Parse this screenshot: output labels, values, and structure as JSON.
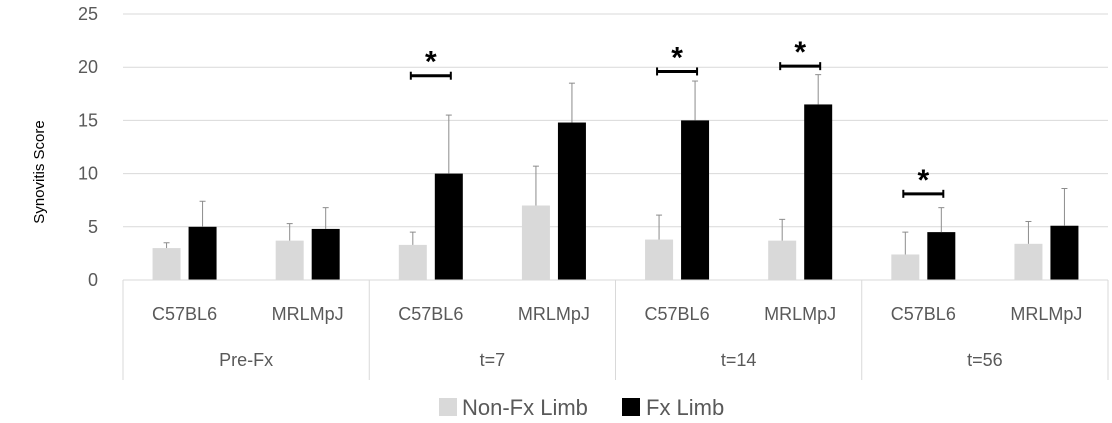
{
  "chart_data": {
    "type": "bar",
    "title": "",
    "ylabel": "Synovitis Score",
    "xlabel": "",
    "ylim": [
      0,
      25
    ],
    "yticks": [
      0,
      5,
      10,
      15,
      20,
      25
    ],
    "grid": true,
    "legend_position": "bottom",
    "groups": [
      {
        "label": "Pre-Fx",
        "strains": [
          "C57BL6",
          "MRLMpJ"
        ]
      },
      {
        "label": "t=7",
        "strains": [
          "C57BL6",
          "MRLMpJ"
        ]
      },
      {
        "label": "t=14",
        "strains": [
          "C57BL6",
          "MRLMpJ"
        ]
      },
      {
        "label": "t=56",
        "strains": [
          "C57BL6",
          "MRLMpJ"
        ]
      }
    ],
    "categories": [
      "C57BL6",
      "MRLMpJ",
      "C57BL6",
      "MRLMpJ",
      "C57BL6",
      "MRLMpJ",
      "C57BL6",
      "MRLMpJ"
    ],
    "series": [
      {
        "name": "Non-Fx Limb",
        "color": "#d9d9d9",
        "values": [
          3.0,
          3.7,
          3.3,
          7.0,
          3.8,
          3.7,
          2.4,
          3.4
        ],
        "error": [
          0.5,
          1.6,
          1.2,
          3.7,
          2.3,
          2.0,
          2.1,
          2.1
        ]
      },
      {
        "name": "Fx Limb",
        "color": "#000000",
        "values": [
          5.0,
          4.8,
          10.0,
          14.8,
          15.0,
          16.5,
          4.5,
          5.1
        ],
        "error": [
          2.4,
          2.0,
          5.5,
          3.7,
          3.7,
          2.8,
          2.3,
          3.5
        ]
      }
    ],
    "significance": [
      {
        "category_index": 2,
        "y": 19.2,
        "label": "*"
      },
      {
        "category_index": 4,
        "y": 19.6,
        "label": "*"
      },
      {
        "category_index": 5,
        "y": 20.1,
        "label": "*"
      },
      {
        "category_index": 6,
        "y": 8.1,
        "label": "*"
      }
    ]
  }
}
